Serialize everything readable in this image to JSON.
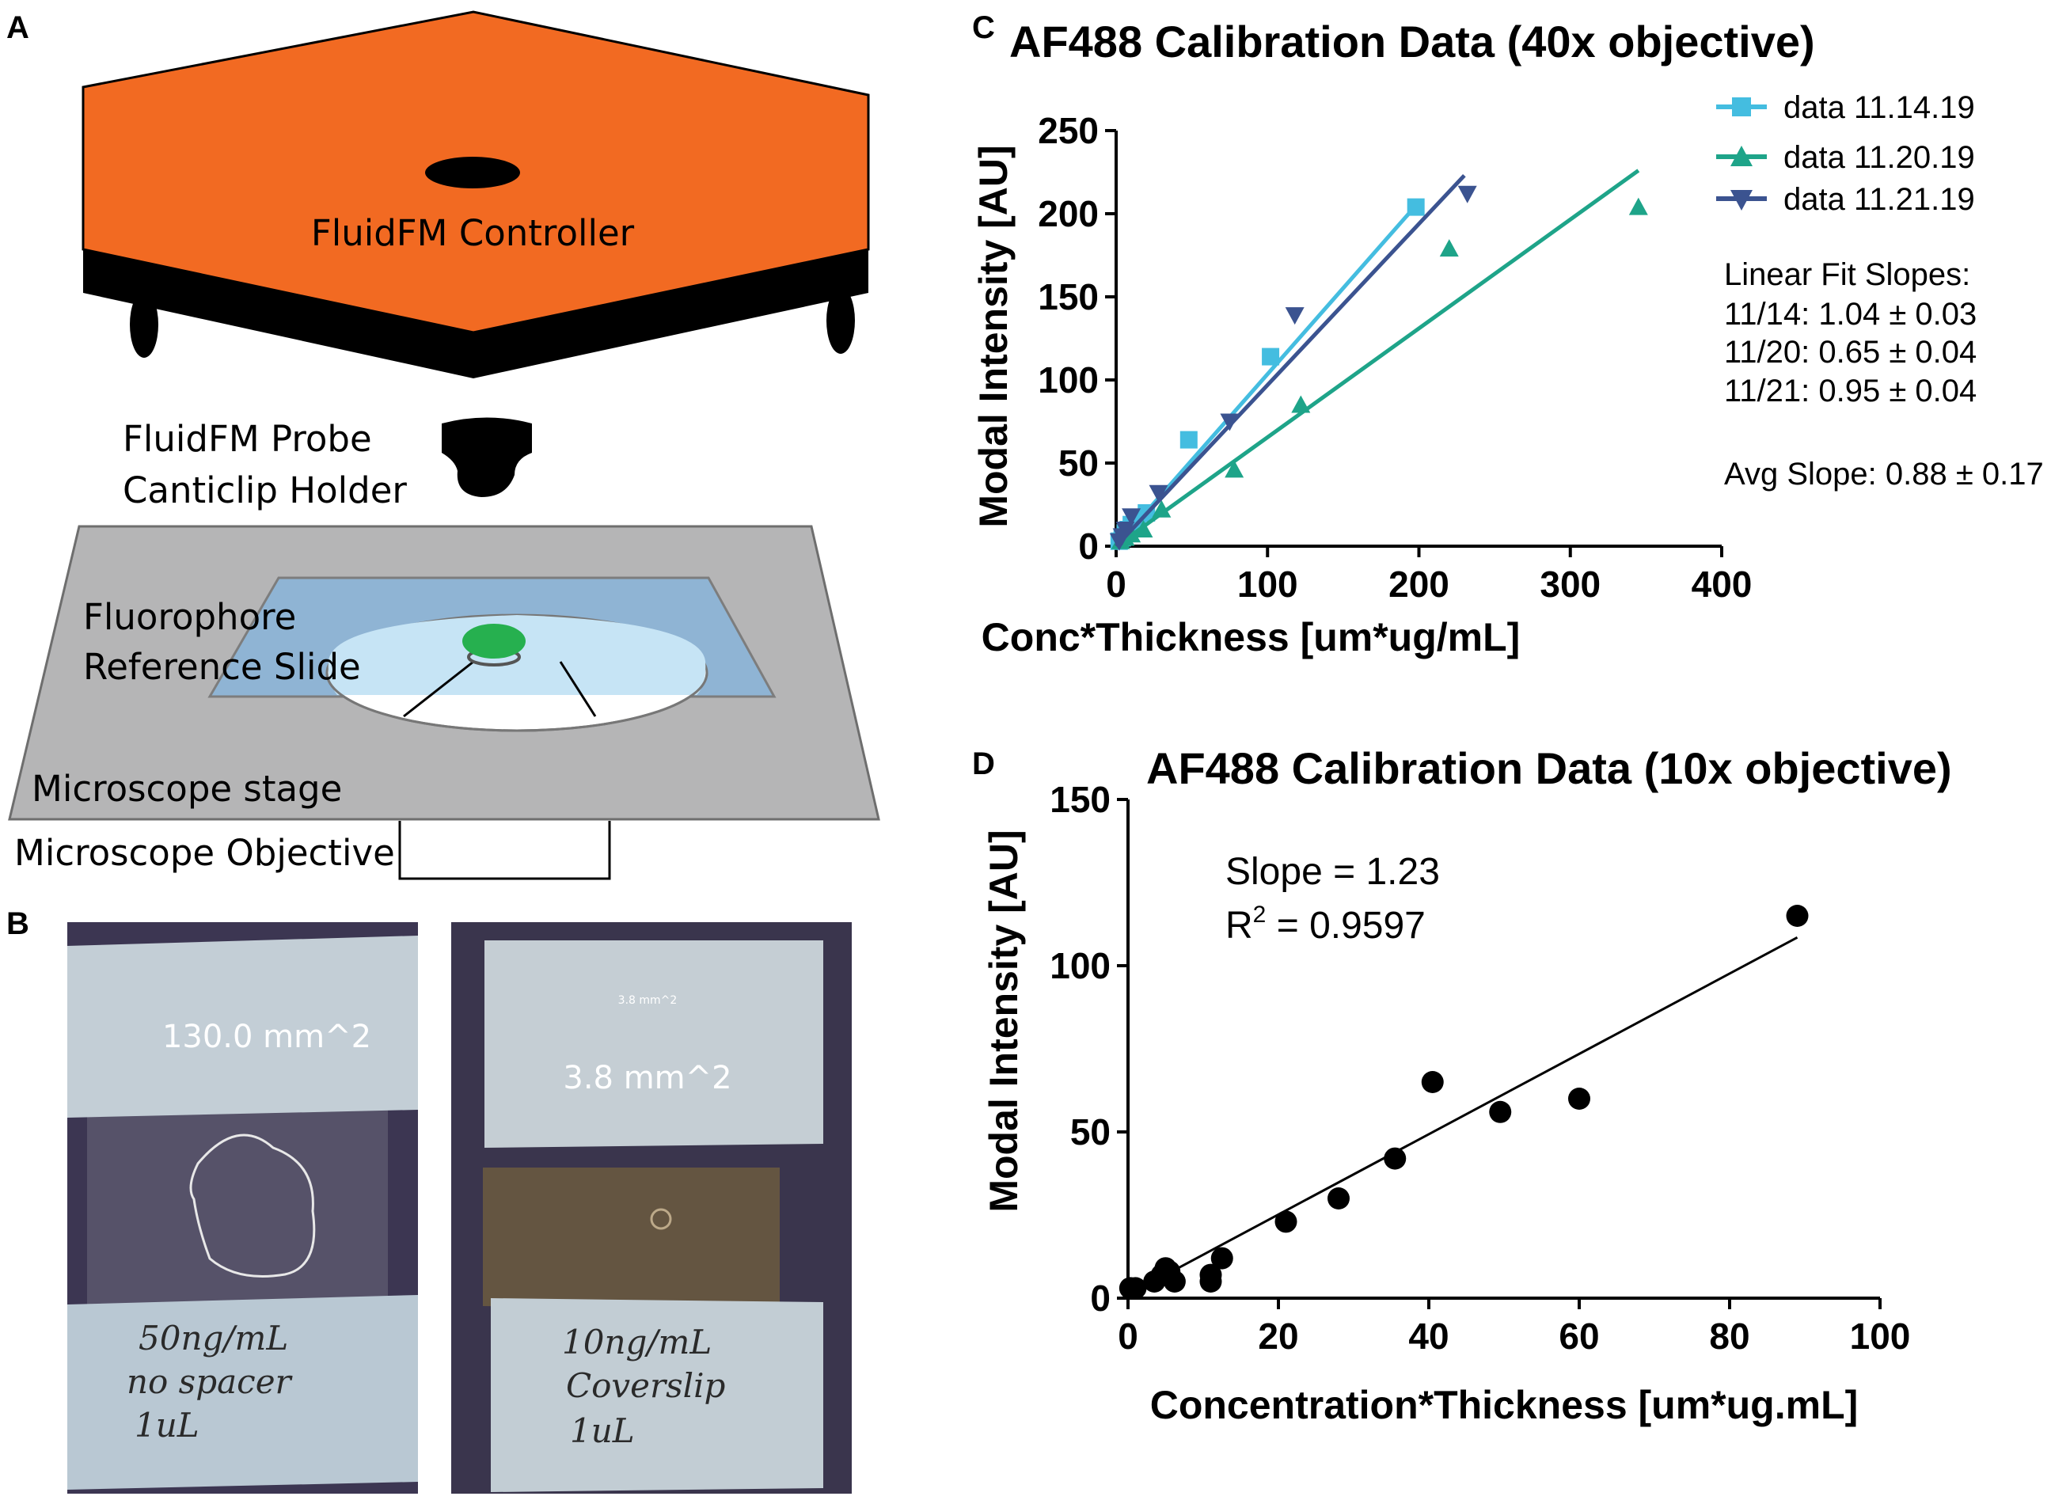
{
  "panel_letters": {
    "a": "A",
    "b": "B",
    "c": "C",
    "d": "D"
  },
  "diagram": {
    "controller_label": "FluidFM Controller",
    "probe_label_line1": "FluidFM Probe",
    "probe_label_line2": "Canticlip Holder",
    "slide_label_line1": "Fluorophore",
    "slide_label_line2": "Reference Slide",
    "stage_label": "Microscope stage",
    "objective_label": "Microscope Objective",
    "colors": {
      "controller": "#f26a22",
      "stage": "#b5b5b6",
      "slide": "#8fb4d4",
      "well": "#c6e4f5",
      "drop": "#26b04f"
    }
  },
  "photos": {
    "left_area_label": "130.0 mm^2",
    "left_note": [
      "50ng/mL",
      "no spacer",
      "1uL"
    ],
    "right_area_label_small": "3.8 mm^2",
    "right_area_label": "3.8 mm^2",
    "right_note": [
      "10ng/mL",
      "Coverslip",
      "1uL"
    ]
  },
  "chart_data": [
    {
      "type": "scatter",
      "title": "AF488 Calibration Data (40x objective)",
      "xlabel": "Conc*Thickness [um*ug/mL]",
      "ylabel": "Modal Intensity [AU]",
      "xlim": [
        0,
        400
      ],
      "ylim": [
        0,
        250
      ],
      "xticks": [
        "0",
        "100",
        "200",
        "300",
        "400"
      ],
      "yticks": [
        "0",
        "50",
        "100",
        "150",
        "200",
        "250"
      ],
      "legend_position": "top-right",
      "series": [
        {
          "name": "data 11.14.19",
          "marker": "square",
          "color": "#44bde0",
          "x": [
            2,
            4,
            6,
            8,
            10,
            14,
            20,
            48,
            102,
            198
          ],
          "y": [
            3,
            5,
            8,
            10,
            13,
            16,
            20,
            64,
            114,
            204
          ],
          "fit_line": [
            [
              0,
              0
            ],
            [
              200,
              207
            ]
          ]
        },
        {
          "name": "data 11.20.19",
          "marker": "triangle-up",
          "color": "#1ea489",
          "x": [
            3,
            6,
            10,
            18,
            30,
            78,
            122,
            220,
            345
          ],
          "y": [
            3,
            5,
            7,
            10,
            22,
            46,
            85,
            179,
            204
          ],
          "fit_line": [
            [
              0,
              0
            ],
            [
              345,
              226
            ]
          ]
        },
        {
          "name": "data 11.21.19",
          "marker": "triangle-down",
          "color": "#3b5390",
          "x": [
            2,
            4,
            6,
            10,
            28,
            75,
            118,
            232
          ],
          "y": [
            3,
            6,
            10,
            18,
            32,
            75,
            139,
            212
          ],
          "fit_line": [
            [
              0,
              0
            ],
            [
              230,
              223
            ]
          ]
        }
      ],
      "annotation_lines": [
        "Linear Fit Slopes:",
        "11/14: 1.04 ± 0.03",
        "11/20: 0.65 ± 0.04",
        "11/21: 0.95 ± 0.04",
        "Avg Slope: 0.88 ± 0.17"
      ]
    },
    {
      "type": "scatter",
      "title": "AF488 Calibration Data (10x objective)",
      "xlabel": "Concentration*Thickness [um*ug.mL]",
      "ylabel": "Modal Intensity [AU]",
      "xlim": [
        0,
        100
      ],
      "ylim": [
        0,
        150
      ],
      "xticks": [
        "0",
        "20",
        "40",
        "60",
        "80",
        "100"
      ],
      "yticks": [
        "0",
        "50",
        "100",
        "150"
      ],
      "series": [
        {
          "name": "",
          "marker": "circle",
          "color": "#000000",
          "x": [
            0.3,
            1,
            3.5,
            4.5,
            5,
            5.5,
            6.2,
            11,
            11,
            12.5,
            21,
            28,
            35.5,
            40.5,
            49.5,
            60,
            89
          ],
          "y": [
            3,
            3,
            5,
            7,
            9,
            8,
            5,
            7,
            5,
            12,
            23,
            30,
            42,
            65,
            56,
            60,
            115
          ],
          "fit_line": [
            [
              0,
              1
            ],
            [
              89,
              108.5
            ]
          ]
        }
      ],
      "annotation": {
        "slope": "Slope = 1.23",
        "r2_prefix": "R",
        "r2_sup": "2",
        "r2_value": " = 0.9597"
      }
    }
  ]
}
